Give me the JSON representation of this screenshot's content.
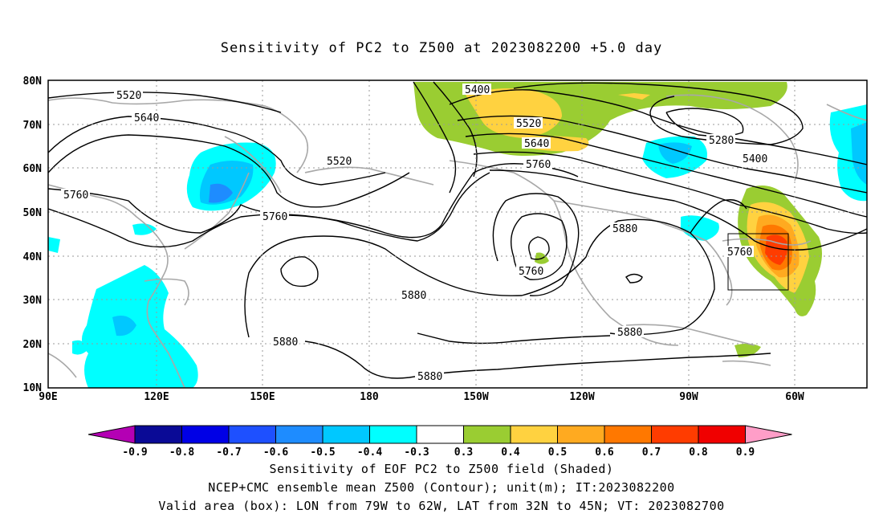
{
  "title": "Sensitivity of PC2 to Z500 at 2023082200 +5.0 day",
  "lat_ticks": [
    "80N",
    "70N",
    "60N",
    "50N",
    "40N",
    "30N",
    "20N",
    "10N"
  ],
  "lon_ticks": [
    "90E",
    "120E",
    "150E",
    "180",
    "150W",
    "120W",
    "90W",
    "60W"
  ],
  "contour_labels": [
    {
      "text": "5520",
      "id": "a"
    },
    {
      "text": "5640",
      "id": "b"
    },
    {
      "text": "5760",
      "id": "c"
    },
    {
      "text": "5520",
      "id": "d"
    },
    {
      "text": "5760",
      "id": "e"
    },
    {
      "text": "5400",
      "id": "f"
    },
    {
      "text": "5520",
      "id": "g"
    },
    {
      "text": "5640",
      "id": "h"
    },
    {
      "text": "5760",
      "id": "i"
    },
    {
      "text": "5880",
      "id": "j"
    },
    {
      "text": "5760",
      "id": "k"
    },
    {
      "text": "5880",
      "id": "l"
    },
    {
      "text": "5880",
      "id": "m"
    },
    {
      "text": "5880",
      "id": "n"
    },
    {
      "text": "5880",
      "id": "o"
    },
    {
      "text": "5280",
      "id": "p"
    },
    {
      "text": "5400",
      "id": "q"
    },
    {
      "text": "5760",
      "id": "r"
    }
  ],
  "colorbar": {
    "labels": [
      "-0.9",
      "-0.8",
      "-0.7",
      "-0.6",
      "-0.5",
      "-0.4",
      "-0.3",
      "0.3",
      "0.4",
      "0.5",
      "0.6",
      "0.7",
      "0.8",
      "0.9"
    ],
    "colors": [
      "#0a0a96",
      "#0000e6",
      "#1e50ff",
      "#1e8cff",
      "#00c8ff",
      "#00ffff",
      "#ffffff",
      "#9acd32",
      "#ffd240",
      "#ffaa20",
      "#ff7800",
      "#ff3c00",
      "#f00000"
    ],
    "low_arrow_color": "#b400b4",
    "high_arrow_color": "#ff9ec8"
  },
  "caption": {
    "line1": "Sensitivity of EOF PC2 to Z500 field (Shaded)",
    "line2": "NCEP+CMC ensemble mean Z500 (Contour); unit(m); IT:2023082200",
    "line3": "Valid area (box): LON from 79W to 62W, LAT from 32N to 45N; VT: 2023082700"
  }
}
